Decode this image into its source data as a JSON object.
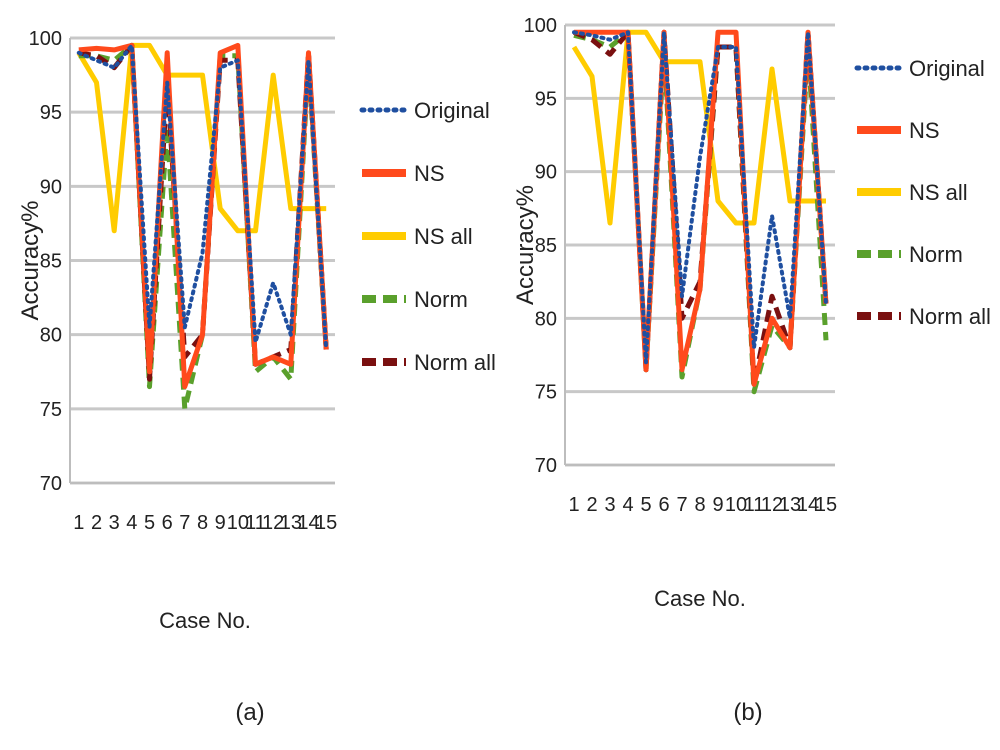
{
  "chart_data": [
    {
      "type": "line",
      "panel_label": "(a)",
      "xlabel": "Case No.",
      "ylabel": "Accuracy%",
      "ylim": [
        70,
        100
      ],
      "yticks": [
        70,
        75,
        80,
        85,
        90,
        95,
        100
      ],
      "grid": true,
      "legend_position": "right",
      "categories": [
        "1",
        "2",
        "3",
        "4",
        "5",
        "6",
        "7",
        "8",
        "9",
        "10",
        "11",
        "12",
        "13",
        "14",
        "15"
      ],
      "series": [
        {
          "name": "Original",
          "color": "#1f4fa0",
          "dash": "dotted",
          "values": [
            99.0,
            98.5,
            98.0,
            99.5,
            80.5,
            97.0,
            80.5,
            85.5,
            98.0,
            98.5,
            79.5,
            83.5,
            80.0,
            98.5,
            79.0
          ]
        },
        {
          "name": "NS",
          "color": "#ff4a1c",
          "dash": "solid",
          "values": [
            99.2,
            99.3,
            99.2,
            99.5,
            77.5,
            99.0,
            76.5,
            80.0,
            99.0,
            99.5,
            78.0,
            78.5,
            78.0,
            99.0,
            79.0
          ]
        },
        {
          "name": "NS all",
          "color": "#ffcc00",
          "dash": "solid",
          "values": [
            99.0,
            97.0,
            87.0,
            99.5,
            99.5,
            97.5,
            97.5,
            97.5,
            88.5,
            87.0,
            87.0,
            97.5,
            88.5,
            88.5,
            88.5
          ]
        },
        {
          "name": "Norm",
          "color": "#5aa02c",
          "dash": "dashed",
          "values": [
            98.8,
            98.8,
            98.5,
            99.5,
            76.5,
            94.0,
            75.0,
            80.0,
            98.8,
            98.8,
            77.5,
            78.5,
            77.0,
            98.5,
            79.0
          ]
        },
        {
          "name": "Norm all",
          "color": "#7a1010",
          "dash": "dashed",
          "values": [
            99.0,
            98.8,
            98.0,
            99.5,
            77.0,
            97.0,
            78.5,
            80.0,
            98.5,
            98.5,
            78.0,
            78.5,
            79.0,
            99.0,
            79.0
          ]
        }
      ]
    },
    {
      "type": "line",
      "panel_label": "(b)",
      "xlabel": "Case No.",
      "ylabel": "Accuracy%",
      "ylim": [
        70,
        100
      ],
      "yticks": [
        70,
        75,
        80,
        85,
        90,
        95,
        100
      ],
      "grid": true,
      "legend_position": "right",
      "categories": [
        "1",
        "2",
        "3",
        "4",
        "5",
        "6",
        "7",
        "8",
        "9",
        "10",
        "11",
        "12",
        "13",
        "14",
        "15"
      ],
      "series": [
        {
          "name": "Original",
          "color": "#1f4fa0",
          "dash": "dotted",
          "values": [
            99.5,
            99.3,
            99.0,
            99.5,
            77.0,
            99.5,
            81.5,
            91.0,
            98.5,
            98.5,
            78.0,
            87.0,
            80.0,
            99.5,
            81.0
          ]
        },
        {
          "name": "NS",
          "color": "#ff4a1c",
          "dash": "solid",
          "values": [
            99.5,
            99.5,
            99.5,
            99.5,
            76.5,
            99.5,
            76.5,
            82.0,
            99.5,
            99.5,
            75.5,
            80.0,
            78.0,
            99.5,
            81.0
          ]
        },
        {
          "name": "NS all",
          "color": "#ffcc00",
          "dash": "solid",
          "values": [
            98.5,
            96.5,
            86.5,
            99.5,
            99.5,
            97.5,
            97.5,
            97.5,
            88.0,
            86.5,
            86.5,
            97.0,
            88.0,
            88.0,
            88.0
          ]
        },
        {
          "name": "Norm",
          "color": "#5aa02c",
          "dash": "dashed",
          "values": [
            99.3,
            99.0,
            98.5,
            99.5,
            76.5,
            98.5,
            76.0,
            82.0,
            98.5,
            98.5,
            75.0,
            79.5,
            78.0,
            98.5,
            78.5
          ]
        },
        {
          "name": "Norm all",
          "color": "#7a1010",
          "dash": "dashed",
          "values": [
            99.5,
            99.0,
            98.0,
            99.5,
            76.5,
            99.5,
            80.0,
            82.5,
            98.5,
            98.5,
            75.5,
            81.5,
            78.0,
            99.5,
            81.0
          ]
        }
      ]
    }
  ]
}
